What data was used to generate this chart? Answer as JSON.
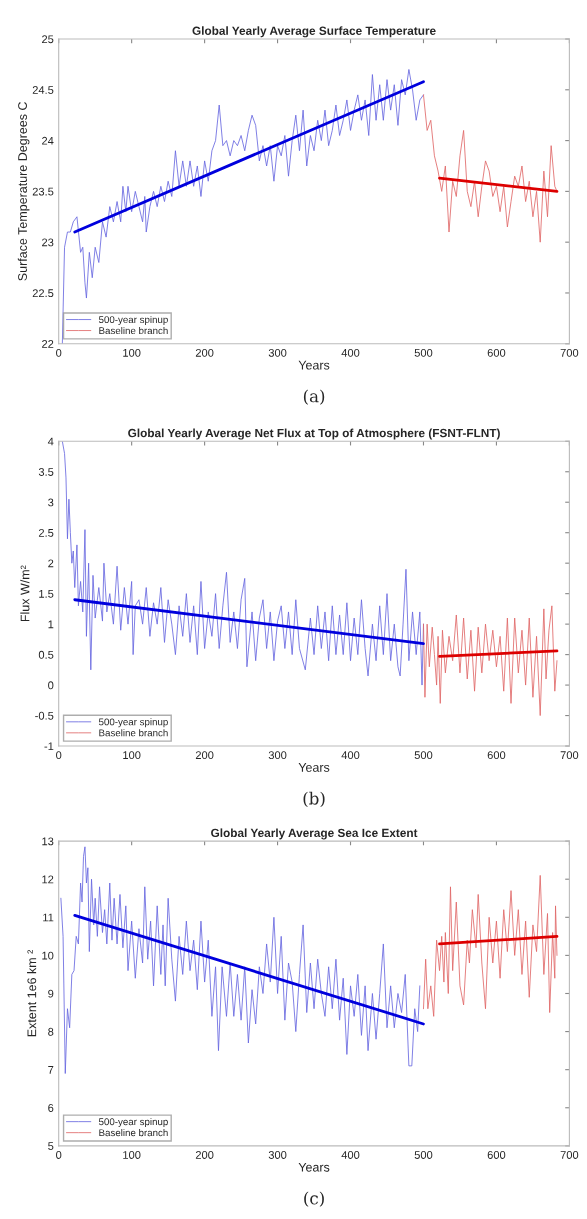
{
  "chart_data": [
    {
      "type": "line",
      "title": "Global Yearly Average Surface Temperature",
      "xlabel": "Years",
      "ylabel": "Surface Temperature Degrees C",
      "annotations": [
        "(a)"
      ],
      "xlim": [
        0,
        700
      ],
      "xticks": [
        0,
        100,
        200,
        300,
        400,
        500,
        600,
        700
      ],
      "ylim": [
        22,
        25
      ],
      "yticks": [
        22,
        22.5,
        23,
        23.5,
        24,
        24.5,
        25
      ],
      "grid": false,
      "legend": "bottom left",
      "marker": "none",
      "line_style": "solid",
      "series": [
        {
          "name": "500-year spinup",
          "color": "#6666e0",
          "x": [
            5,
            8,
            12,
            16,
            20,
            25,
            30,
            33,
            36,
            38,
            42,
            46,
            50,
            55,
            60,
            65,
            70,
            75,
            80,
            85,
            88,
            92,
            95,
            100,
            105,
            110,
            115,
            118,
            120,
            125,
            130,
            135,
            140,
            145,
            150,
            155,
            160,
            165,
            170,
            175,
            180,
            185,
            190,
            195,
            200,
            205,
            210,
            215,
            220,
            225,
            230,
            235,
            240,
            245,
            250,
            255,
            260,
            265,
            270,
            275,
            280,
            285,
            290,
            295,
            300,
            305,
            310,
            315,
            320,
            325,
            330,
            335,
            340,
            345,
            350,
            355,
            360,
            365,
            370,
            375,
            380,
            385,
            390,
            395,
            400,
            405,
            410,
            415,
            420,
            425,
            430,
            435,
            440,
            445,
            450,
            455,
            460,
            465,
            470,
            475,
            480,
            485,
            490,
            495,
            500
          ],
          "values": [
            22.0,
            22.95,
            23.1,
            23.1,
            23.2,
            23.25,
            22.9,
            22.95,
            22.6,
            22.45,
            22.9,
            22.65,
            22.95,
            22.8,
            23.2,
            23.05,
            23.35,
            23.2,
            23.4,
            23.2,
            23.55,
            23.3,
            23.55,
            23.3,
            23.5,
            23.35,
            23.2,
            23.45,
            23.1,
            23.35,
            23.5,
            23.35,
            23.55,
            23.4,
            23.6,
            23.45,
            23.9,
            23.55,
            23.8,
            23.55,
            23.8,
            23.55,
            23.75,
            23.45,
            23.8,
            23.6,
            23.9,
            24.0,
            24.35,
            23.95,
            24.0,
            23.85,
            24.0,
            23.95,
            24.05,
            23.9,
            24.1,
            24.25,
            24.15,
            23.8,
            23.95,
            23.75,
            23.95,
            23.6,
            23.95,
            23.85,
            24.05,
            23.65,
            24.0,
            24.25,
            23.9,
            24.3,
            23.75,
            24.05,
            23.9,
            24.2,
            24.0,
            24.3,
            23.95,
            24.1,
            24.35,
            24.05,
            24.2,
            24.4,
            24.1,
            24.3,
            24.45,
            24.2,
            24.4,
            24.05,
            24.65,
            24.2,
            24.55,
            24.2,
            24.6,
            24.3,
            24.55,
            24.15,
            24.6,
            24.45,
            24.7,
            24.5,
            24.2,
            24.4,
            24.45
          ]
        },
        {
          "name": "Baseline branch",
          "color": "#e06666",
          "x": [
            500,
            505,
            510,
            515,
            520,
            525,
            530,
            535,
            540,
            545,
            550,
            555,
            560,
            565,
            570,
            575,
            580,
            585,
            590,
            595,
            600,
            605,
            610,
            615,
            620,
            625,
            630,
            635,
            640,
            645,
            650,
            655,
            660,
            665,
            670,
            675,
            680,
            683
          ],
          "values": [
            24.45,
            24.1,
            24.2,
            23.85,
            23.7,
            23.5,
            23.75,
            23.1,
            23.6,
            23.45,
            23.85,
            24.1,
            23.5,
            23.35,
            23.6,
            23.25,
            23.55,
            23.8,
            23.7,
            23.45,
            23.55,
            23.3,
            23.55,
            23.15,
            23.4,
            23.65,
            23.55,
            23.75,
            23.4,
            23.6,
            23.25,
            23.5,
            23.0,
            23.7,
            23.25,
            23.95,
            23.55,
            23.5
          ]
        },
        {
          "type": "line",
          "color": "#0000dd",
          "x": [
            22,
            500
          ],
          "values": [
            23.1,
            24.58
          ]
        },
        {
          "type": "line",
          "color": "#dd0000",
          "x": [
            522,
            683
          ],
          "values": [
            23.63,
            23.5
          ]
        }
      ]
    },
    {
      "type": "line",
      "title": "Global Yearly Average Net Flux at Top of Atmosphere (FSNT-FLNT)",
      "xlabel": "Years",
      "ylabel": "Flux W/m²",
      "annotations": [
        "(b)"
      ],
      "xlim": [
        0,
        700
      ],
      "xticks": [
        0,
        100,
        200,
        300,
        400,
        500,
        600,
        700
      ],
      "ylim": [
        -1,
        4
      ],
      "yticks": [
        -1,
        -0.5,
        0,
        0.5,
        1,
        1.5,
        2,
        2.5,
        3,
        3.5,
        4
      ],
      "grid": false,
      "legend": "bottom left",
      "marker": "none",
      "line_style": "solid",
      "series": [
        {
          "name": "500-year spinup",
          "color": "#6666e0",
          "x": [
            5,
            8,
            10,
            12,
            14,
            16,
            18,
            20,
            22,
            25,
            27,
            30,
            33,
            36,
            38,
            41,
            44,
            47,
            50,
            55,
            60,
            62,
            66,
            70,
            75,
            80,
            85,
            90,
            95,
            100,
            102,
            105,
            110,
            115,
            120,
            125,
            130,
            135,
            140,
            145,
            150,
            155,
            160,
            165,
            170,
            175,
            180,
            185,
            190,
            195,
            200,
            205,
            210,
            215,
            220,
            225,
            230,
            235,
            240,
            245,
            250,
            255,
            258,
            265,
            270,
            275,
            280,
            285,
            290,
            295,
            300,
            305,
            310,
            315,
            320,
            325,
            330,
            338,
            345,
            350,
            355,
            360,
            365,
            370,
            375,
            380,
            385,
            390,
            395,
            400,
            405,
            410,
            415,
            420,
            424,
            430,
            435,
            440,
            445,
            450,
            455,
            460,
            465,
            468,
            472,
            476,
            480,
            485,
            490,
            495,
            498,
            500
          ],
          "values": [
            4.0,
            3.8,
            3.4,
            2.4,
            3.05,
            2.5,
            2.0,
            2.2,
            1.6,
            2.3,
            1.3,
            1.7,
            1.2,
            2.55,
            0.8,
            2.0,
            0.25,
            1.8,
            1.1,
            1.6,
            1.05,
            2.0,
            1.2,
            1.5,
            1.0,
            1.95,
            0.9,
            1.6,
            1.0,
            1.7,
            0.5,
            1.3,
            1.4,
            1.0,
            1.6,
            0.8,
            1.35,
            1.0,
            1.6,
            0.7,
            1.4,
            1.0,
            0.5,
            1.3,
            0.8,
            1.5,
            0.7,
            1.3,
            0.5,
            1.7,
            0.6,
            1.2,
            0.8,
            1.5,
            0.6,
            1.3,
            1.85,
            0.7,
            1.2,
            0.6,
            1.4,
            1.75,
            0.3,
            1.2,
            0.4,
            1.1,
            1.4,
            0.6,
            1.2,
            0.4,
            1.05,
            1.3,
            0.6,
            1.2,
            0.5,
            1.4,
            0.6,
            0.25,
            1.1,
            0.5,
            1.3,
            0.6,
            1.2,
            0.4,
            1.3,
            0.5,
            1.15,
            0.5,
            1.35,
            0.4,
            1.1,
            0.5,
            1.4,
            0.6,
            0.15,
            1.0,
            0.4,
            1.3,
            0.5,
            1.5,
            0.4,
            1.0,
            0.3,
            0.15,
            1.0,
            1.9,
            0.4,
            1.2,
            0.5,
            1.2,
            0.0,
            1.0
          ]
        },
        {
          "name": "Baseline branch",
          "color": "#e06666",
          "x": [
            500,
            502,
            505,
            508,
            512,
            515,
            518,
            520,
            523,
            526,
            530,
            535,
            540,
            545,
            550,
            555,
            560,
            565,
            570,
            575,
            580,
            585,
            590,
            595,
            600,
            605,
            610,
            615,
            620,
            625,
            630,
            635,
            640,
            645,
            650,
            655,
            660,
            665,
            668,
            672,
            676,
            680,
            683
          ],
          "values": [
            1.0,
            -0.2,
            1.0,
            0.3,
            0.95,
            0.5,
            0.0,
            0.8,
            -0.3,
            0.9,
            0.2,
            0.8,
            0.4,
            1.15,
            0.2,
            1.1,
            0.1,
            0.9,
            -0.1,
            0.95,
            0.2,
            1.0,
            0.4,
            0.9,
            0.3,
            0.8,
            -0.1,
            1.1,
            -0.3,
            1.1,
            0.2,
            0.9,
            0.0,
            1.1,
            -0.2,
            0.8,
            -0.5,
            1.25,
            0.1,
            0.9,
            1.3,
            -0.1,
            0.4
          ]
        },
        {
          "type": "line",
          "color": "#0000dd",
          "x": [
            22,
            500
          ],
          "values": [
            1.4,
            0.68
          ]
        },
        {
          "type": "line",
          "color": "#dd0000",
          "x": [
            522,
            683
          ],
          "values": [
            0.47,
            0.56
          ]
        }
      ]
    },
    {
      "type": "line",
      "title": "Global Yearly Average Sea Ice Extent",
      "xlabel": "Years",
      "ylabel": "Extent 1e6 km ²",
      "annotations": [
        "(c)"
      ],
      "xlim": [
        0,
        700
      ],
      "xticks": [
        0,
        100,
        200,
        300,
        400,
        500,
        600,
        700
      ],
      "ylim": [
        5,
        13
      ],
      "yticks": [
        5,
        6,
        7,
        8,
        9,
        10,
        11,
        12,
        13
      ],
      "grid": false,
      "legend": "bottom left",
      "marker": "none",
      "line_style": "solid",
      "series": [
        {
          "name": "500-year spinup",
          "color": "#6666e0",
          "x": [
            3,
            6,
            9,
            12,
            15,
            18,
            21,
            24,
            27,
            30,
            32,
            34,
            36,
            38,
            40,
            42,
            45,
            48,
            50,
            53,
            56,
            60,
            63,
            66,
            70,
            73,
            76,
            80,
            84,
            88,
            92,
            95,
            100,
            105,
            110,
            115,
            118,
            122,
            126,
            130,
            135,
            140,
            143,
            146,
            150,
            155,
            160,
            165,
            170,
            175,
            180,
            185,
            190,
            195,
            200,
            205,
            210,
            215,
            219,
            224,
            230,
            235,
            240,
            245,
            250,
            255,
            260,
            265,
            270,
            275,
            280,
            285,
            290,
            295,
            300,
            305,
            310,
            315,
            320,
            325,
            330,
            335,
            340,
            345,
            350,
            355,
            360,
            365,
            370,
            375,
            380,
            385,
            390,
            395,
            400,
            405,
            410,
            415,
            420,
            424,
            430,
            435,
            440,
            445,
            450,
            455,
            460,
            465,
            470,
            475,
            480,
            484,
            488,
            492,
            495
          ],
          "values": [
            11.5,
            10.5,
            6.9,
            8.6,
            8.1,
            9.5,
            9.6,
            10.5,
            10.3,
            11.9,
            11.4,
            12.6,
            12.85,
            11.9,
            12.3,
            10.1,
            12.0,
            10.8,
            11.5,
            10.5,
            11.8,
            10.6,
            11.2,
            10.3,
            11.9,
            10.4,
            11.5,
            10.3,
            11.6,
            10.2,
            11.3,
            9.6,
            10.9,
            9.4,
            10.7,
            9.8,
            11.8,
            9.9,
            10.9,
            9.2,
            11.3,
            9.5,
            10.8,
            9.2,
            11.5,
            9.9,
            8.8,
            10.5,
            9.5,
            10.9,
            9.6,
            10.4,
            9.1,
            10.9,
            9.3,
            10.4,
            8.4,
            9.7,
            7.5,
            9.7,
            8.4,
            9.8,
            8.4,
            9.5,
            8.3,
            9.7,
            7.7,
            9.1,
            8.2,
            9.7,
            9.0,
            10.3,
            9.3,
            11.0,
            9.0,
            10.5,
            8.3,
            9.8,
            9.3,
            8.0,
            9.5,
            10.8,
            8.5,
            9.8,
            8.6,
            9.9,
            9.0,
            8.4,
            9.7,
            8.6,
            9.9,
            8.3,
            9.4,
            7.4,
            9.2,
            8.4,
            9.5,
            7.9,
            9.2,
            7.5,
            9.0,
            7.8,
            9.0,
            10.3,
            8.1,
            9.2,
            8.1,
            9.0,
            8.5,
            9.5,
            7.1,
            7.1,
            8.6,
            8.0,
            9.2
          ]
        },
        {
          "name": "Baseline branch",
          "color": "#e06666",
          "x": [
            500,
            503,
            506,
            510,
            514,
            518,
            522,
            525,
            528,
            530,
            534,
            537,
            540,
            545,
            550,
            555,
            560,
            563,
            567,
            572,
            575,
            580,
            585,
            590,
            595,
            600,
            605,
            610,
            615,
            620,
            625,
            630,
            635,
            640,
            645,
            650,
            655,
            660,
            665,
            670,
            673,
            677,
            680,
            681,
            683
          ],
          "values": [
            8.6,
            9.9,
            8.6,
            9.2,
            8.4,
            10.4,
            9.6,
            10.5,
            9.3,
            10.6,
            9.0,
            11.8,
            9.6,
            11.4,
            9.2,
            8.7,
            10.4,
            9.8,
            11.2,
            10.2,
            11.6,
            9.8,
            8.6,
            11.0,
            9.8,
            10.9,
            9.4,
            11.2,
            10.1,
            11.7,
            10.0,
            11.2,
            9.5,
            10.9,
            8.9,
            10.8,
            10.1,
            12.1,
            9.5,
            11.1,
            8.5,
            10.6,
            9.4,
            11.3,
            10.0
          ]
        },
        {
          "type": "line",
          "color": "#0000dd",
          "x": [
            22,
            500
          ],
          "values": [
            11.05,
            8.2
          ]
        },
        {
          "type": "line",
          "color": "#dd0000",
          "x": [
            522,
            683
          ],
          "values": [
            10.3,
            10.5
          ]
        }
      ]
    }
  ]
}
